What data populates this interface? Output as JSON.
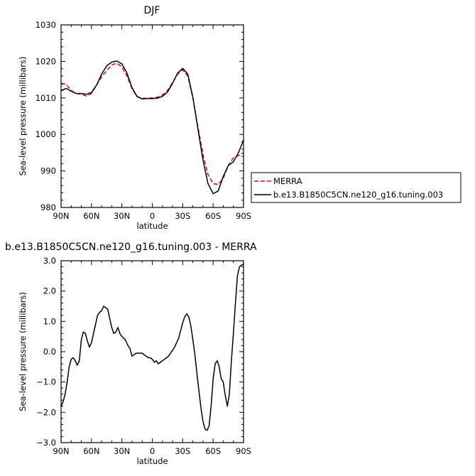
{
  "chart_data": [
    {
      "type": "line",
      "title": "DJF",
      "xlabel": "latitude",
      "ylabel": "Sea-level pressure (millibars)",
      "xlim": [
        90,
        -90
      ],
      "ylim": [
        980,
        1030
      ],
      "xticks": [
        {
          "v": 90,
          "label": "90N"
        },
        {
          "v": 60,
          "label": "60N"
        },
        {
          "v": 30,
          "label": "30N"
        },
        {
          "v": 0,
          "label": "0"
        },
        {
          "v": -30,
          "label": "30S"
        },
        {
          "v": -60,
          "label": "60S"
        },
        {
          "v": -90,
          "label": "90S"
        }
      ],
      "yticks": [
        {
          "v": 980,
          "label": "980"
        },
        {
          "v": 990,
          "label": "990"
        },
        {
          "v": 1000,
          "label": "1000"
        },
        {
          "v": 1010,
          "label": "1010"
        },
        {
          "v": 1020,
          "label": "1020"
        },
        {
          "v": 1030,
          "label": "1030"
        }
      ],
      "legend": {
        "placement": "right-bottom"
      },
      "series": [
        {
          "name": "MERRA",
          "color": "#e8000b",
          "dash": true,
          "x": [
            90,
            85,
            80,
            75,
            70,
            65,
            60,
            55,
            50,
            45,
            40,
            35,
            30,
            25,
            20,
            15,
            10,
            5,
            0,
            -5,
            -10,
            -15,
            -20,
            -25,
            -30,
            -35,
            -40,
            -45,
            -50,
            -55,
            -60,
            -65,
            -70,
            -75,
            -80,
            -85,
            -90
          ],
          "y": [
            1013.8,
            1013.8,
            1012.0,
            1011.2,
            1011.0,
            1010.5,
            1011.2,
            1013.5,
            1015.8,
            1017.5,
            1019.0,
            1019.5,
            1018.5,
            1016.0,
            1012.5,
            1010.3,
            1009.9,
            1009.9,
            1010.0,
            1010.2,
            1010.8,
            1012.0,
            1014.2,
            1016.5,
            1017.7,
            1016.0,
            1010.0,
            1002.0,
            994.5,
            989.0,
            986.5,
            986.3,
            988.0,
            991.5,
            993.6,
            994.2,
            995.0
          ]
        },
        {
          "name": "b.e13.B1850C5CN.ne120_g16.tuning.003",
          "color": "#000000",
          "dash": false,
          "x": [
            90,
            85,
            80,
            75,
            70,
            65,
            60,
            55,
            50,
            45,
            40,
            35,
            30,
            25,
            20,
            15,
            10,
            5,
            0,
            -5,
            -10,
            -15,
            -20,
            -25,
            -30,
            -35,
            -40,
            -45,
            -50,
            -55,
            -60,
            -65,
            -70,
            -75,
            -80,
            -85,
            -90
          ],
          "y": [
            1012.0,
            1012.6,
            1011.8,
            1011.2,
            1011.2,
            1011.0,
            1011.5,
            1013.5,
            1016.5,
            1018.8,
            1019.8,
            1020.1,
            1019.3,
            1016.8,
            1012.8,
            1010.4,
            1009.7,
            1009.8,
            1009.8,
            1009.9,
            1010.4,
            1011.6,
            1014.0,
            1016.8,
            1018.1,
            1016.5,
            1010.2,
            1001.5,
            993.0,
            986.5,
            983.8,
            984.5,
            988.5,
            991.5,
            992.5,
            995.0,
            998.5
          ]
        }
      ]
    },
    {
      "type": "line",
      "title": "b.e13.B1850C5CN.ne120_g16.tuning.003 - MERRA",
      "xlabel": "latitude",
      "ylabel": "Sea-level pressure (millibars)",
      "xlim": [
        90,
        -90
      ],
      "ylim": [
        -3.0,
        3.0
      ],
      "xticks": [
        {
          "v": 90,
          "label": "90N"
        },
        {
          "v": 60,
          "label": "60N"
        },
        {
          "v": 30,
          "label": "30N"
        },
        {
          "v": 0,
          "label": "0"
        },
        {
          "v": -30,
          "label": "30S"
        },
        {
          "v": -60,
          "label": "60S"
        },
        {
          "v": -90,
          "label": "90S"
        }
      ],
      "yticks": [
        {
          "v": -3,
          "label": "−3.0"
        },
        {
          "v": -2,
          "label": "−2.0"
        },
        {
          "v": -1,
          "label": "−1.0"
        },
        {
          "v": 0,
          "label": "0.0"
        },
        {
          "v": 1,
          "label": "1.0"
        },
        {
          "v": 2,
          "label": "2.0"
        },
        {
          "v": 3,
          "label": "3.0"
        }
      ],
      "series": [
        {
          "name": "",
          "color": "#000000",
          "dash": false,
          "x": [
            90,
            88,
            86,
            84,
            82,
            80,
            78,
            76,
            74,
            72,
            70,
            68,
            66,
            64,
            62,
            60,
            58,
            56,
            54,
            52,
            50,
            48,
            46,
            44,
            42,
            40,
            38,
            36,
            34,
            32,
            30,
            28,
            26,
            24,
            22,
            20,
            18,
            16,
            14,
            12,
            10,
            8,
            6,
            4,
            2,
            0,
            -2,
            -4,
            -6,
            -8,
            -10,
            -12,
            -14,
            -16,
            -18,
            -20,
            -22,
            -24,
            -26,
            -28,
            -30,
            -32,
            -34,
            -36,
            -38,
            -40,
            -42,
            -44,
            -46,
            -48,
            -50,
            -52,
            -54,
            -56,
            -58,
            -60,
            -62,
            -64,
            -66,
            -68,
            -70,
            -72,
            -74,
            -76,
            -78,
            -80,
            -82,
            -84,
            -86,
            -88,
            -90
          ],
          "y": [
            -1.8,
            -1.65,
            -1.4,
            -1.0,
            -0.5,
            -0.25,
            -0.2,
            -0.3,
            -0.45,
            -0.3,
            0.4,
            0.65,
            0.6,
            0.35,
            0.15,
            0.3,
            0.6,
            0.9,
            1.2,
            1.3,
            1.35,
            1.5,
            1.45,
            1.4,
            1.1,
            0.8,
            0.6,
            0.65,
            0.8,
            0.6,
            0.5,
            0.45,
            0.35,
            0.2,
            0.1,
            -0.15,
            -0.1,
            -0.05,
            -0.05,
            -0.05,
            -0.05,
            -0.1,
            -0.15,
            -0.2,
            -0.2,
            -0.25,
            -0.35,
            -0.3,
            -0.4,
            -0.35,
            -0.3,
            -0.25,
            -0.2,
            -0.15,
            -0.05,
            0.05,
            0.15,
            0.3,
            0.45,
            0.7,
            0.95,
            1.15,
            1.25,
            1.15,
            0.85,
            0.4,
            -0.1,
            -0.7,
            -1.3,
            -1.85,
            -2.3,
            -2.55,
            -2.6,
            -2.45,
            -1.8,
            -0.9,
            -0.4,
            -0.3,
            -0.5,
            -0.9,
            -1.0,
            -1.45,
            -1.8,
            -1.4,
            -0.3,
            0.6,
            1.6,
            2.5,
            2.8,
            2.85,
            2.9
          ]
        }
      ]
    }
  ]
}
